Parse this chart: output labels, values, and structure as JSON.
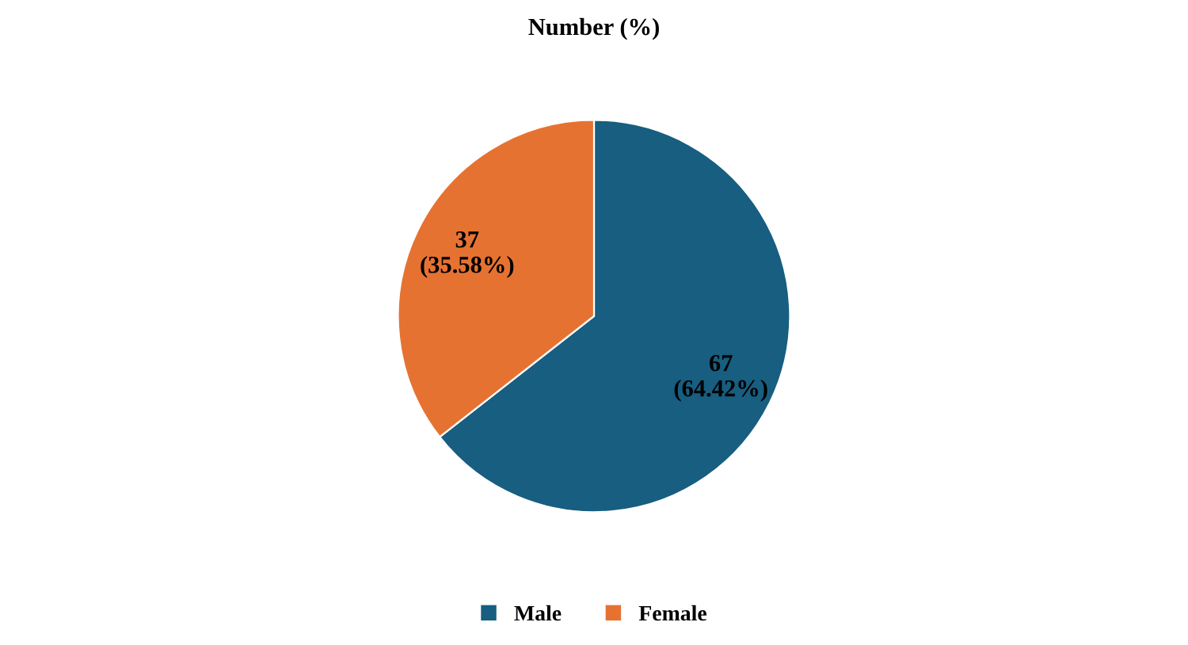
{
  "chart_data": {
    "type": "pie",
    "title": "Number (%)",
    "categories": [
      "Male",
      "Female"
    ],
    "values": [
      67,
      37
    ],
    "colors": [
      "#175e80",
      "#e67232"
    ],
    "value_labels": [
      "67\n(64.42%)",
      "37\n(35.58%)"
    ],
    "legend": "bottom"
  }
}
